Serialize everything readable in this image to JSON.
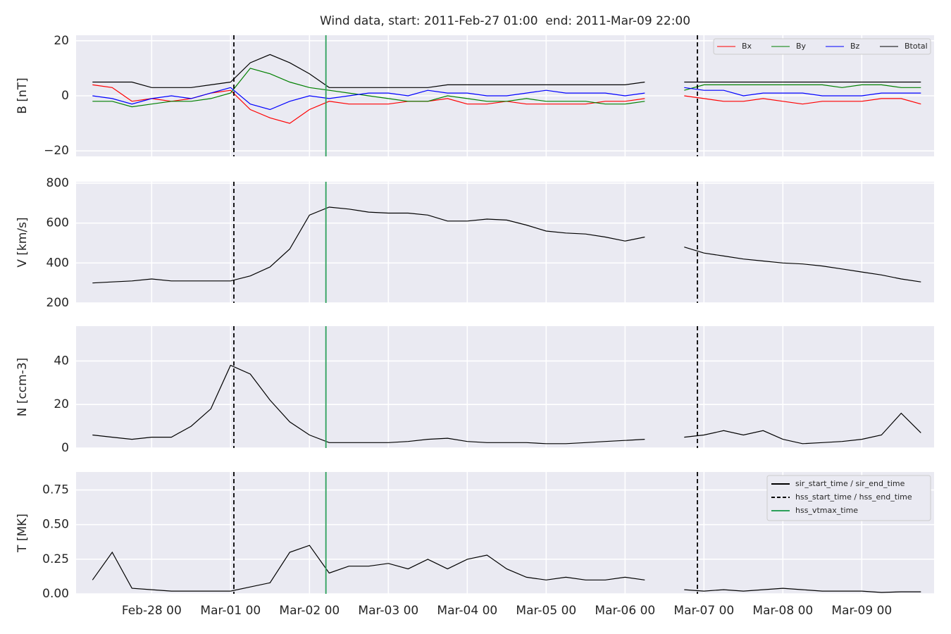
{
  "title": "Wind data, start: 2011-Feb-27 01:00  end: 2011-Mar-09 22:00",
  "chart_data": [
    {
      "type": "line",
      "ylabel": "B [nT]",
      "ylim": [
        -22,
        22
      ],
      "yticks": [
        {
          "value": -20,
          "label": "−20"
        },
        0,
        20
      ],
      "grid": true,
      "legend": {
        "loc": "upper right"
      },
      "vlines": [
        {
          "x": "2011-03-01T01:00",
          "style": "dashed",
          "color": "#000000"
        },
        {
          "x": "2011-03-06T22:00",
          "style": "dashed",
          "color": "#000000"
        },
        {
          "x": "2011-03-02T05:00",
          "style": "solid",
          "color": "#2ca05a"
        }
      ],
      "x": [
        "2011-02-27T06:00",
        "2011-02-27T12:00",
        "2011-02-27T18:00",
        "2011-02-28T00:00",
        "2011-02-28T06:00",
        "2011-02-28T12:00",
        "2011-02-28T18:00",
        "2011-03-01T00:00",
        "2011-03-01T06:00",
        "2011-03-01T12:00",
        "2011-03-01T18:00",
        "2011-03-02T00:00",
        "2011-03-02T06:00",
        "2011-03-02T12:00",
        "2011-03-02T18:00",
        "2011-03-03T00:00",
        "2011-03-03T06:00",
        "2011-03-03T12:00",
        "2011-03-03T18:00",
        "2011-03-04T00:00",
        "2011-03-04T06:00",
        "2011-03-04T12:00",
        "2011-03-04T18:00",
        "2011-03-05T00:00",
        "2011-03-05T06:00",
        "2011-03-05T12:00",
        "2011-03-05T18:00",
        "2011-03-06T00:00",
        "2011-03-06T06:00",
        "2011-03-06T12:00",
        "2011-03-06T18:00",
        "2011-03-07T00:00",
        "2011-03-07T06:00",
        "2011-03-07T12:00",
        "2011-03-07T18:00",
        "2011-03-08T00:00",
        "2011-03-08T06:00",
        "2011-03-08T12:00",
        "2011-03-08T18:00",
        "2011-03-09T00:00",
        "2011-03-09T06:00",
        "2011-03-09T12:00",
        "2011-03-09T18:00"
      ],
      "series": [
        {
          "name": "Bx",
          "color": "#ff0000",
          "values": [
            4,
            3,
            -2,
            -1,
            -2,
            -1,
            1,
            2,
            -5,
            -8,
            -10,
            -5,
            -2,
            -3,
            -3,
            -3,
            -2,
            -2,
            -1,
            -3,
            -3,
            -2,
            -3,
            -3,
            -3,
            -3,
            -2,
            -2,
            -1,
            null,
            0,
            -1,
            -2,
            -2,
            -1,
            -2,
            -3,
            -2,
            -2,
            -2,
            -1,
            -1,
            -3
          ]
        },
        {
          "name": "By",
          "color": "#008000",
          "values": [
            -2,
            -2,
            -4,
            -3,
            -2,
            -2,
            -1,
            1,
            10,
            8,
            5,
            3,
            2,
            1,
            0,
            -1,
            -2,
            -2,
            0,
            -1,
            -2,
            -2,
            -1,
            -2,
            -2,
            -2,
            -3,
            -3,
            -2,
            null,
            2,
            4,
            4,
            4,
            4,
            4,
            4,
            4,
            3,
            4,
            4,
            3,
            3
          ]
        },
        {
          "name": "Bz",
          "color": "#0000ff",
          "values": [
            0,
            -1,
            -3,
            -1,
            0,
            -1,
            1,
            3,
            -3,
            -5,
            -2,
            0,
            -1,
            0,
            1,
            1,
            0,
            2,
            1,
            1,
            0,
            0,
            1,
            2,
            1,
            1,
            1,
            0,
            1,
            null,
            3,
            2,
            2,
            0,
            1,
            1,
            1,
            0,
            0,
            0,
            1,
            1,
            1
          ]
        },
        {
          "name": "Btotal",
          "color": "#000000",
          "values": [
            5,
            5,
            5,
            3,
            3,
            3,
            4,
            5,
            12,
            15,
            12,
            8,
            3,
            3,
            3,
            3,
            3,
            3,
            4,
            4,
            4,
            4,
            4,
            4,
            4,
            4,
            4,
            4,
            5,
            null,
            5,
            5,
            5,
            5,
            5,
            5,
            5,
            5,
            5,
            5,
            5,
            5,
            5
          ]
        }
      ]
    },
    {
      "type": "line",
      "ylabel": "V [km/s]",
      "ylim": [
        200,
        807
      ],
      "yticks": [
        200,
        400,
        600,
        800
      ],
      "grid": true,
      "vlines": [
        {
          "x": "2011-03-01T01:00",
          "style": "dashed",
          "color": "#000000"
        },
        {
          "x": "2011-03-06T22:00",
          "style": "dashed",
          "color": "#000000"
        },
        {
          "x": "2011-03-02T05:00",
          "style": "solid",
          "color": "#2ca05a"
        }
      ],
      "x": [
        "2011-02-27T06:00",
        "2011-02-27T12:00",
        "2011-02-27T18:00",
        "2011-02-28T00:00",
        "2011-02-28T06:00",
        "2011-02-28T12:00",
        "2011-02-28T18:00",
        "2011-03-01T00:00",
        "2011-03-01T06:00",
        "2011-03-01T12:00",
        "2011-03-01T18:00",
        "2011-03-02T00:00",
        "2011-03-02T06:00",
        "2011-03-02T12:00",
        "2011-03-02T18:00",
        "2011-03-03T00:00",
        "2011-03-03T06:00",
        "2011-03-03T12:00",
        "2011-03-03T18:00",
        "2011-03-04T00:00",
        "2011-03-04T06:00",
        "2011-03-04T12:00",
        "2011-03-04T18:00",
        "2011-03-05T00:00",
        "2011-03-05T06:00",
        "2011-03-05T12:00",
        "2011-03-05T18:00",
        "2011-03-06T00:00",
        "2011-03-06T06:00",
        "2011-03-06T12:00",
        "2011-03-06T18:00",
        "2011-03-07T00:00",
        "2011-03-07T06:00",
        "2011-03-07T12:00",
        "2011-03-07T18:00",
        "2011-03-08T00:00",
        "2011-03-08T06:00",
        "2011-03-08T12:00",
        "2011-03-08T18:00",
        "2011-03-09T00:00",
        "2011-03-09T06:00",
        "2011-03-09T12:00",
        "2011-03-09T18:00"
      ],
      "series": [
        {
          "color": "#000000",
          "values": [
            300,
            305,
            310,
            320,
            310,
            310,
            310,
            310,
            335,
            380,
            470,
            640,
            680,
            670,
            655,
            650,
            650,
            640,
            610,
            610,
            620,
            615,
            590,
            560,
            550,
            545,
            530,
            510,
            530,
            null,
            480,
            450,
            435,
            420,
            410,
            400,
            395,
            385,
            370,
            355,
            340,
            320,
            305
          ]
        }
      ]
    },
    {
      "type": "line",
      "ylabel": "N [ccm-3]",
      "ylim": [
        0,
        56
      ],
      "yticks": [
        0,
        20,
        40
      ],
      "grid": true,
      "vlines": [
        {
          "x": "2011-03-01T01:00",
          "style": "dashed",
          "color": "#000000"
        },
        {
          "x": "2011-03-06T22:00",
          "style": "dashed",
          "color": "#000000"
        },
        {
          "x": "2011-03-02T05:00",
          "style": "solid",
          "color": "#2ca05a"
        }
      ],
      "x": [
        "2011-02-27T06:00",
        "2011-02-27T12:00",
        "2011-02-27T18:00",
        "2011-02-28T00:00",
        "2011-02-28T06:00",
        "2011-02-28T12:00",
        "2011-02-28T18:00",
        "2011-03-01T00:00",
        "2011-03-01T06:00",
        "2011-03-01T12:00",
        "2011-03-01T18:00",
        "2011-03-02T00:00",
        "2011-03-02T06:00",
        "2011-03-02T12:00",
        "2011-03-02T18:00",
        "2011-03-03T00:00",
        "2011-03-03T06:00",
        "2011-03-03T12:00",
        "2011-03-03T18:00",
        "2011-03-04T00:00",
        "2011-03-04T06:00",
        "2011-03-04T12:00",
        "2011-03-04T18:00",
        "2011-03-05T00:00",
        "2011-03-05T06:00",
        "2011-03-05T12:00",
        "2011-03-05T18:00",
        "2011-03-06T00:00",
        "2011-03-06T06:00",
        "2011-03-06T12:00",
        "2011-03-06T18:00",
        "2011-03-07T00:00",
        "2011-03-07T06:00",
        "2011-03-07T12:00",
        "2011-03-07T18:00",
        "2011-03-08T00:00",
        "2011-03-08T06:00",
        "2011-03-08T12:00",
        "2011-03-08T18:00",
        "2011-03-09T00:00",
        "2011-03-09T06:00",
        "2011-03-09T12:00",
        "2011-03-09T18:00"
      ],
      "series": [
        {
          "color": "#000000",
          "values": [
            6,
            5,
            4,
            5,
            5,
            10,
            18,
            38,
            34,
            22,
            12,
            6,
            2.5,
            2.5,
            2.5,
            2.5,
            3,
            4,
            4.5,
            3,
            2.5,
            2.5,
            2.5,
            2,
            2,
            2.5,
            3,
            3.5,
            4,
            null,
            5,
            6,
            8,
            6,
            8,
            4,
            2,
            2.5,
            3,
            4,
            6,
            16,
            7
          ]
        }
      ]
    },
    {
      "type": "line",
      "ylabel": "T [MK]",
      "ylim": [
        0,
        0.88
      ],
      "yticks": [
        {
          "value": 0,
          "label": "0.00"
        },
        0.25,
        {
          "value": 0.5,
          "label": "0.50"
        },
        0.75
      ],
      "grid": true,
      "xlim": [
        "2011-02-27T01:00",
        "2011-03-09T22:00"
      ],
      "xticks": [
        {
          "value": "2011-02-28T00:00",
          "label": "Feb-28 00"
        },
        {
          "value": "2011-03-01T00:00",
          "label": "Mar-01 00"
        },
        {
          "value": "2011-03-02T00:00",
          "label": "Mar-02 00"
        },
        {
          "value": "2011-03-03T00:00",
          "label": "Mar-03 00"
        },
        {
          "value": "2011-03-04T00:00",
          "label": "Mar-04 00"
        },
        {
          "value": "2011-03-05T00:00",
          "label": "Mar-05 00"
        },
        {
          "value": "2011-03-06T00:00",
          "label": "Mar-06 00"
        },
        {
          "value": "2011-03-07T00:00",
          "label": "Mar-07 00"
        },
        {
          "value": "2011-03-08T00:00",
          "label": "Mar-08 00"
        },
        {
          "value": "2011-03-09T00:00",
          "label": "Mar-09 00"
        }
      ],
      "legend": {
        "loc": "upper right",
        "entries": [
          {
            "name": "sir_start_time / sir_end_time",
            "color": "#000000",
            "style": "solid"
          },
          {
            "name": "hss_start_time / hss_end_time",
            "color": "#000000",
            "style": "dashed"
          },
          {
            "name": "hss_vtmax_time",
            "color": "#2ca05a",
            "style": "solid"
          }
        ]
      },
      "vlines": [
        {
          "x": "2011-03-01T01:00",
          "style": "dashed",
          "color": "#000000"
        },
        {
          "x": "2011-03-06T22:00",
          "style": "dashed",
          "color": "#000000"
        },
        {
          "x": "2011-03-02T05:00",
          "style": "solid",
          "color": "#2ca05a"
        }
      ],
      "x": [
        "2011-02-27T06:00",
        "2011-02-27T12:00",
        "2011-02-27T18:00",
        "2011-02-28T00:00",
        "2011-02-28T06:00",
        "2011-02-28T12:00",
        "2011-02-28T18:00",
        "2011-03-01T00:00",
        "2011-03-01T06:00",
        "2011-03-01T12:00",
        "2011-03-01T18:00",
        "2011-03-02T00:00",
        "2011-03-02T06:00",
        "2011-03-02T12:00",
        "2011-03-02T18:00",
        "2011-03-03T00:00",
        "2011-03-03T06:00",
        "2011-03-03T12:00",
        "2011-03-03T18:00",
        "2011-03-04T00:00",
        "2011-03-04T06:00",
        "2011-03-04T12:00",
        "2011-03-04T18:00",
        "2011-03-05T00:00",
        "2011-03-05T06:00",
        "2011-03-05T12:00",
        "2011-03-05T18:00",
        "2011-03-06T00:00",
        "2011-03-06T06:00",
        "2011-03-06T12:00",
        "2011-03-06T18:00",
        "2011-03-07T00:00",
        "2011-03-07T06:00",
        "2011-03-07T12:00",
        "2011-03-07T18:00",
        "2011-03-08T00:00",
        "2011-03-08T06:00",
        "2011-03-08T12:00",
        "2011-03-08T18:00",
        "2011-03-09T00:00",
        "2011-03-09T06:00",
        "2011-03-09T12:00",
        "2011-03-09T18:00"
      ],
      "series": [
        {
          "color": "#000000",
          "values": [
            0.1,
            0.3,
            0.04,
            0.03,
            0.02,
            0.02,
            0.02,
            0.02,
            0.05,
            0.08,
            0.3,
            0.35,
            0.15,
            0.2,
            0.2,
            0.22,
            0.18,
            0.25,
            0.18,
            0.25,
            0.28,
            0.18,
            0.12,
            0.1,
            0.12,
            0.1,
            0.1,
            0.12,
            0.1,
            null,
            0.03,
            0.02,
            0.03,
            0.02,
            0.03,
            0.04,
            0.03,
            0.02,
            0.02,
            0.02,
            0.01,
            0.015,
            0.015
          ]
        }
      ]
    }
  ]
}
